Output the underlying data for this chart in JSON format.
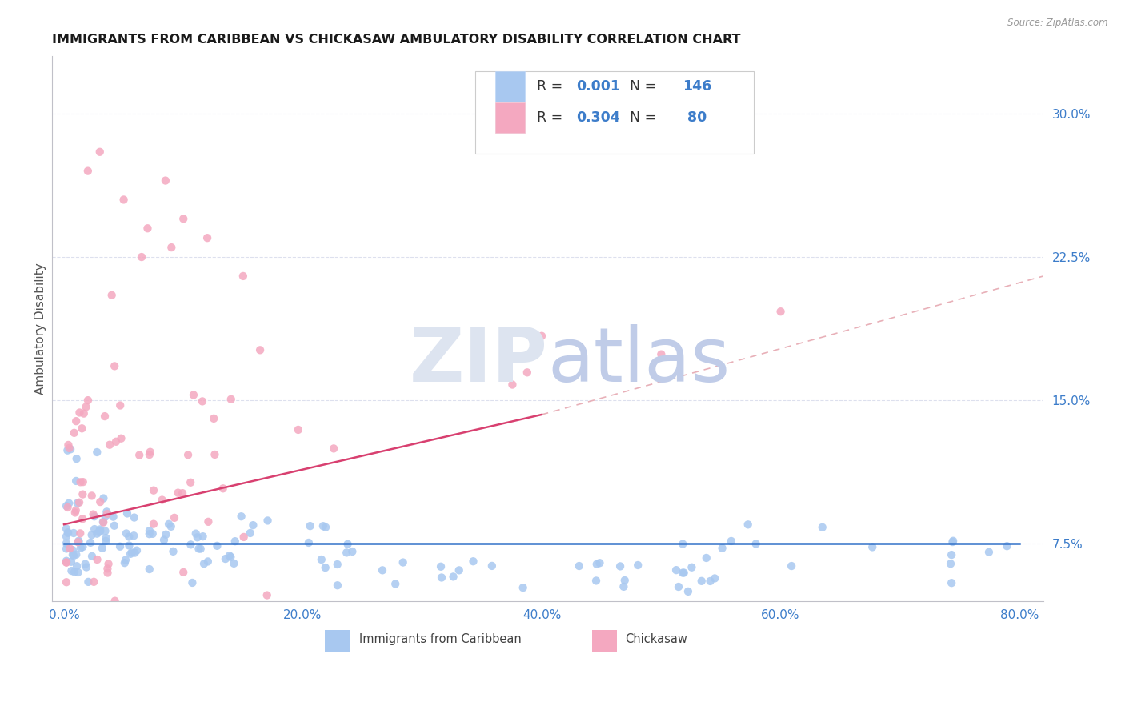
{
  "title": "IMMIGRANTS FROM CARIBBEAN VS CHICKASAW AMBULATORY DISABILITY CORRELATION CHART",
  "source": "Source: ZipAtlas.com",
  "ylabel": "Ambulatory Disability",
  "x_tick_labels": [
    "0.0%",
    "20.0%",
    "40.0%",
    "60.0%",
    "80.0%"
  ],
  "x_tick_positions": [
    0.0,
    20.0,
    40.0,
    60.0,
    80.0
  ],
  "y_tick_labels": [
    "7.5%",
    "15.0%",
    "22.5%",
    "30.0%"
  ],
  "y_tick_positions": [
    7.5,
    15.0,
    22.5,
    30.0
  ],
  "xlim": [
    -1.0,
    82.0
  ],
  "ylim": [
    4.5,
    33.0
  ],
  "legend_label_blue": "Immigrants from Caribbean",
  "legend_label_pink": "Chickasaw",
  "R_blue": "0.001",
  "N_blue": "146",
  "R_pink": "0.304",
  "N_pink": "80",
  "blue_dot_color": "#a8c8f0",
  "pink_dot_color": "#f4a8c0",
  "trend_blue_color": "#3070c8",
  "trend_pink_color": "#d84070",
  "dashed_line_color": "#e8b0b8",
  "title_color": "#1a1a1a",
  "axis_tick_color": "#3d7dca",
  "grid_color": "#dde0ee",
  "watermark_color": "#ccd8f0",
  "background_color": "#ffffff",
  "legend_border_color": "#cccccc",
  "text_dark_color": "#333333"
}
